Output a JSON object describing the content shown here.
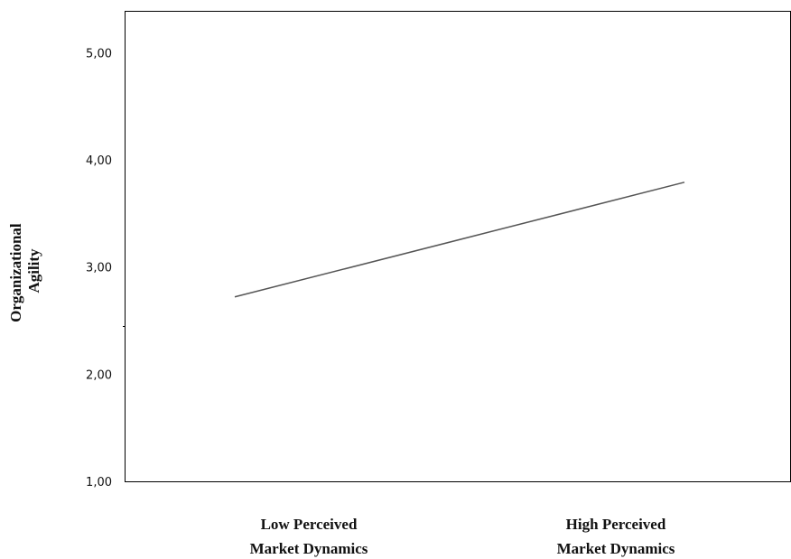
{
  "chart_data": {
    "type": "line",
    "categories": [
      [
        "Low Perceived",
        "Market Dynamics"
      ],
      [
        "High Perceived",
        "Market Dynamics"
      ]
    ],
    "series": [
      {
        "values": [
          2.73,
          3.8
        ],
        "color": "#555555"
      }
    ],
    "ylabel": [
      "Organizational",
      "Agility"
    ],
    "ylim": [
      1.0,
      5.4
    ],
    "yticks": [
      "1,00",
      "2,00",
      "3,00",
      "4,00",
      "5,00"
    ],
    "ytick_values": [
      1,
      2,
      3,
      4,
      5
    ],
    "grid": false
  }
}
